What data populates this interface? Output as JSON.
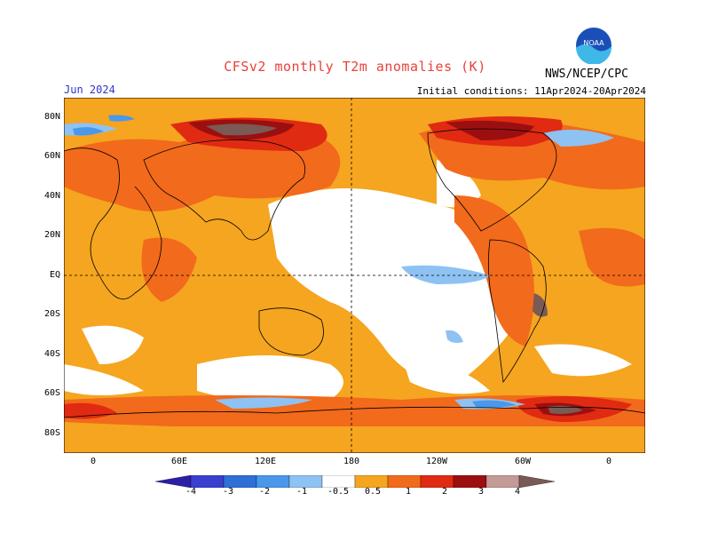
{
  "header": {
    "title": "CFSv2 monthly T2m anomalies (K)",
    "agency": "NWS/NCEP/CPC",
    "logo_text": "NOAA",
    "month": "Jun 2024",
    "initial_conditions": "Initial conditions: 11Apr2024-20Apr2024"
  },
  "map": {
    "lat_labels": [
      "80N",
      "60N",
      "40N",
      "20N",
      "EQ",
      "20S",
      "40S",
      "60S",
      "80S"
    ],
    "lon_labels": [
      "0",
      "60E",
      "120E",
      "180",
      "120W",
      "60W",
      "0"
    ],
    "dashed_reference_lines": [
      "EQ",
      "180"
    ]
  },
  "colorbar": {
    "labels": [
      "-4",
      "-3",
      "-2",
      "-1",
      "-0.5",
      "0.5",
      "1",
      "2",
      "3",
      "4"
    ],
    "colors": [
      "#2b1fa8",
      "#3a3fd0",
      "#2f6fd6",
      "#4a98ea",
      "#8ec2f2",
      "#ffffff",
      "#f5a51f",
      "#f26a1b",
      "#e02a12",
      "#9c0f10",
      "#c49a96",
      "#7a5a55"
    ],
    "land_outline": "#000000",
    "background": "#ffffff"
  }
}
